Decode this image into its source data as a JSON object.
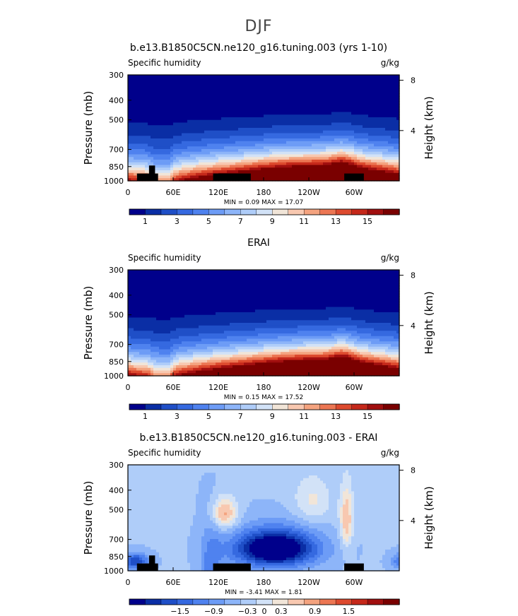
{
  "page": {
    "title": "DJF"
  },
  "palettes": {
    "abs": [
      "#00008b",
      "#0a2ea5",
      "#1f4fc7",
      "#3569e0",
      "#4f82ef",
      "#6d9cf6",
      "#8db5f9",
      "#afcdf9",
      "#d2e2f7",
      "#f1e5d8",
      "#f8c8b0",
      "#f4a37f",
      "#ec7653",
      "#dd4a2e",
      "#c5281a",
      "#a10f0f",
      "#7a0000"
    ],
    "diff": [
      "#00008b",
      "#0a2ea5",
      "#1f4fc7",
      "#3569e0",
      "#4f82ef",
      "#6d9cf6",
      "#8db5f9",
      "#afcdf9",
      "#d2e2f7",
      "#f1e5d8",
      "#f8c8b0",
      "#f4a37f",
      "#ec7653",
      "#dd4a2e",
      "#c5281a",
      "#a10f0f",
      "#7a0000"
    ]
  },
  "chart_data": [
    {
      "type": "heatmap",
      "title": "b.e13.B1850C5CN.ne120_g16.tuning.003 (yrs 1-10)",
      "left_label": "Specific humidity",
      "units": "g/kg",
      "ylabel": "Pressure (mb)",
      "ylabel_right": "Height (km)",
      "x_ticks": [
        "0",
        "60E",
        "120E",
        "180",
        "120W",
        "60W"
      ],
      "x_tick_values": [
        0,
        60,
        120,
        180,
        240,
        300
      ],
      "xlim": [
        0,
        360
      ],
      "y_ticks": [
        "300",
        "400",
        "500",
        "700",
        "850",
        "1000"
      ],
      "y_tick_values": [
        300,
        400,
        500,
        700,
        850,
        1000
      ],
      "ylim": [
        300,
        1000
      ],
      "log_pressure": true,
      "height_ticks": [
        "8",
        "4"
      ],
      "height_tick_values": [
        8,
        4
      ],
      "field": "model",
      "stats": "MIN =    0.09   MAX =   17.07",
      "colorbar": {
        "labels": [
          "1",
          "3",
          "5",
          "7",
          "9",
          "11",
          "13",
          "15"
        ],
        "label_values": [
          1,
          3,
          5,
          7,
          9,
          11,
          13,
          15
        ],
        "range": [
          0,
          17
        ],
        "palette": "abs"
      },
      "terrain": [
        {
          "x0": 12,
          "x1": 40,
          "p_top": 920
        },
        {
          "x0": 28,
          "x1": 36,
          "p_top": 840
        },
        {
          "x0": 113,
          "x1": 163,
          "p_top": 920
        },
        {
          "x0": 287,
          "x1": 313,
          "p_top": 920
        }
      ]
    },
    {
      "type": "heatmap",
      "title": "ERAI",
      "left_label": "Specific humidity",
      "units": "g/kg",
      "ylabel": "Pressure (mb)",
      "ylabel_right": "Height (km)",
      "x_ticks": [
        "0",
        "60E",
        "120E",
        "180",
        "120W",
        "60W"
      ],
      "x_tick_values": [
        0,
        60,
        120,
        180,
        240,
        300
      ],
      "xlim": [
        0,
        360
      ],
      "y_ticks": [
        "300",
        "400",
        "500",
        "700",
        "850",
        "1000"
      ],
      "y_tick_values": [
        300,
        400,
        500,
        700,
        850,
        1000
      ],
      "ylim": [
        300,
        1000
      ],
      "log_pressure": true,
      "height_ticks": [
        "8",
        "4"
      ],
      "height_tick_values": [
        8,
        4
      ],
      "field": "obs",
      "stats": "MIN =    0.15   MAX =   17.52",
      "colorbar": {
        "labels": [
          "1",
          "3",
          "5",
          "7",
          "9",
          "11",
          "13",
          "15"
        ],
        "label_values": [
          1,
          3,
          5,
          7,
          9,
          11,
          13,
          15
        ],
        "range": [
          0,
          17
        ],
        "palette": "abs"
      },
      "terrain": []
    },
    {
      "type": "heatmap",
      "title": "b.e13.B1850C5CN.ne120_g16.tuning.003 - ERAI",
      "left_label": "Specific humidity",
      "units": "g/kg",
      "ylabel": "Pressure (mb)",
      "ylabel_right": "Height (km)",
      "x_ticks": [
        "0",
        "60E",
        "120E",
        "180",
        "120W",
        "60W"
      ],
      "x_tick_values": [
        0,
        60,
        120,
        180,
        240,
        300
      ],
      "xlim": [
        0,
        360
      ],
      "y_ticks": [
        "300",
        "400",
        "500",
        "700",
        "850",
        "1000"
      ],
      "y_tick_values": [
        300,
        400,
        500,
        700,
        850,
        1000
      ],
      "ylim": [
        300,
        1000
      ],
      "log_pressure": true,
      "height_ticks": [
        "8",
        "4"
      ],
      "height_tick_values": [
        8,
        4
      ],
      "field": "diff",
      "stats": "MIN =   -3.41   MAX =    1.81",
      "colorbar": {
        "labels": [
          "−1.5",
          "−0.9",
          "−0.3",
          "0",
          "0.3",
          "0.9",
          "1.5"
        ],
        "label_values": [
          -1.5,
          -0.9,
          -0.3,
          0,
          0.3,
          0.9,
          1.5
        ],
        "range": [
          -2.4,
          2.4
        ],
        "palette": "diff"
      },
      "terrain": [
        {
          "x0": 12,
          "x1": 40,
          "p_top": 920
        },
        {
          "x0": 28,
          "x1": 36,
          "p_top": 840
        },
        {
          "x0": 113,
          "x1": 163,
          "p_top": 920
        },
        {
          "x0": 287,
          "x1": 313,
          "p_top": 920
        }
      ]
    }
  ]
}
